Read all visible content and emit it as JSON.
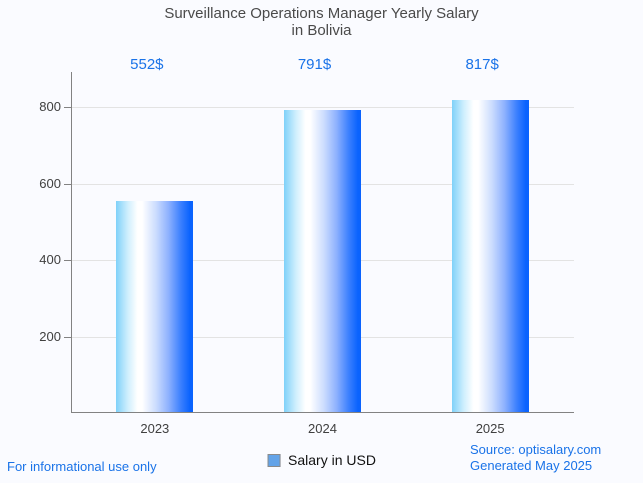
{
  "title": {
    "line1": "Surveillance Operations Manager Yearly Salary",
    "line2": "in Bolivia"
  },
  "chart_data": {
    "type": "bar",
    "title": "Surveillance Operations Manager Yearly Salary in Bolivia",
    "categories": [
      "2023",
      "2024",
      "2025"
    ],
    "values": [
      552,
      791,
      817
    ],
    "value_labels": [
      "552$",
      "791$",
      "817$"
    ],
    "series": [
      {
        "name": "Salary in USD",
        "values": [
          552,
          791,
          817
        ]
      }
    ],
    "xlabel": "",
    "ylabel": "",
    "yticks": [
      200,
      400,
      600,
      800
    ],
    "ylim": [
      0,
      892
    ],
    "grid": true,
    "legend_position": "bottom"
  },
  "legend": {
    "label": "Salary in USD"
  },
  "footer": {
    "left": "For informational use only",
    "source": "Source: optisalary.com",
    "generated": "Generated May 2025"
  },
  "colors": {
    "bg": "#fafbff",
    "accent": "#1a73e8",
    "title_color": "#4a4a4a",
    "tick_color": "#404040",
    "gridline": "#e3e3e3",
    "axis": "#828282",
    "bar_left": "#7fd1f9",
    "bar_right": "#0a63fe",
    "swatch": "#63a3e8",
    "swatch_border": "#8a8a8a",
    "legend_text": "#111111"
  }
}
